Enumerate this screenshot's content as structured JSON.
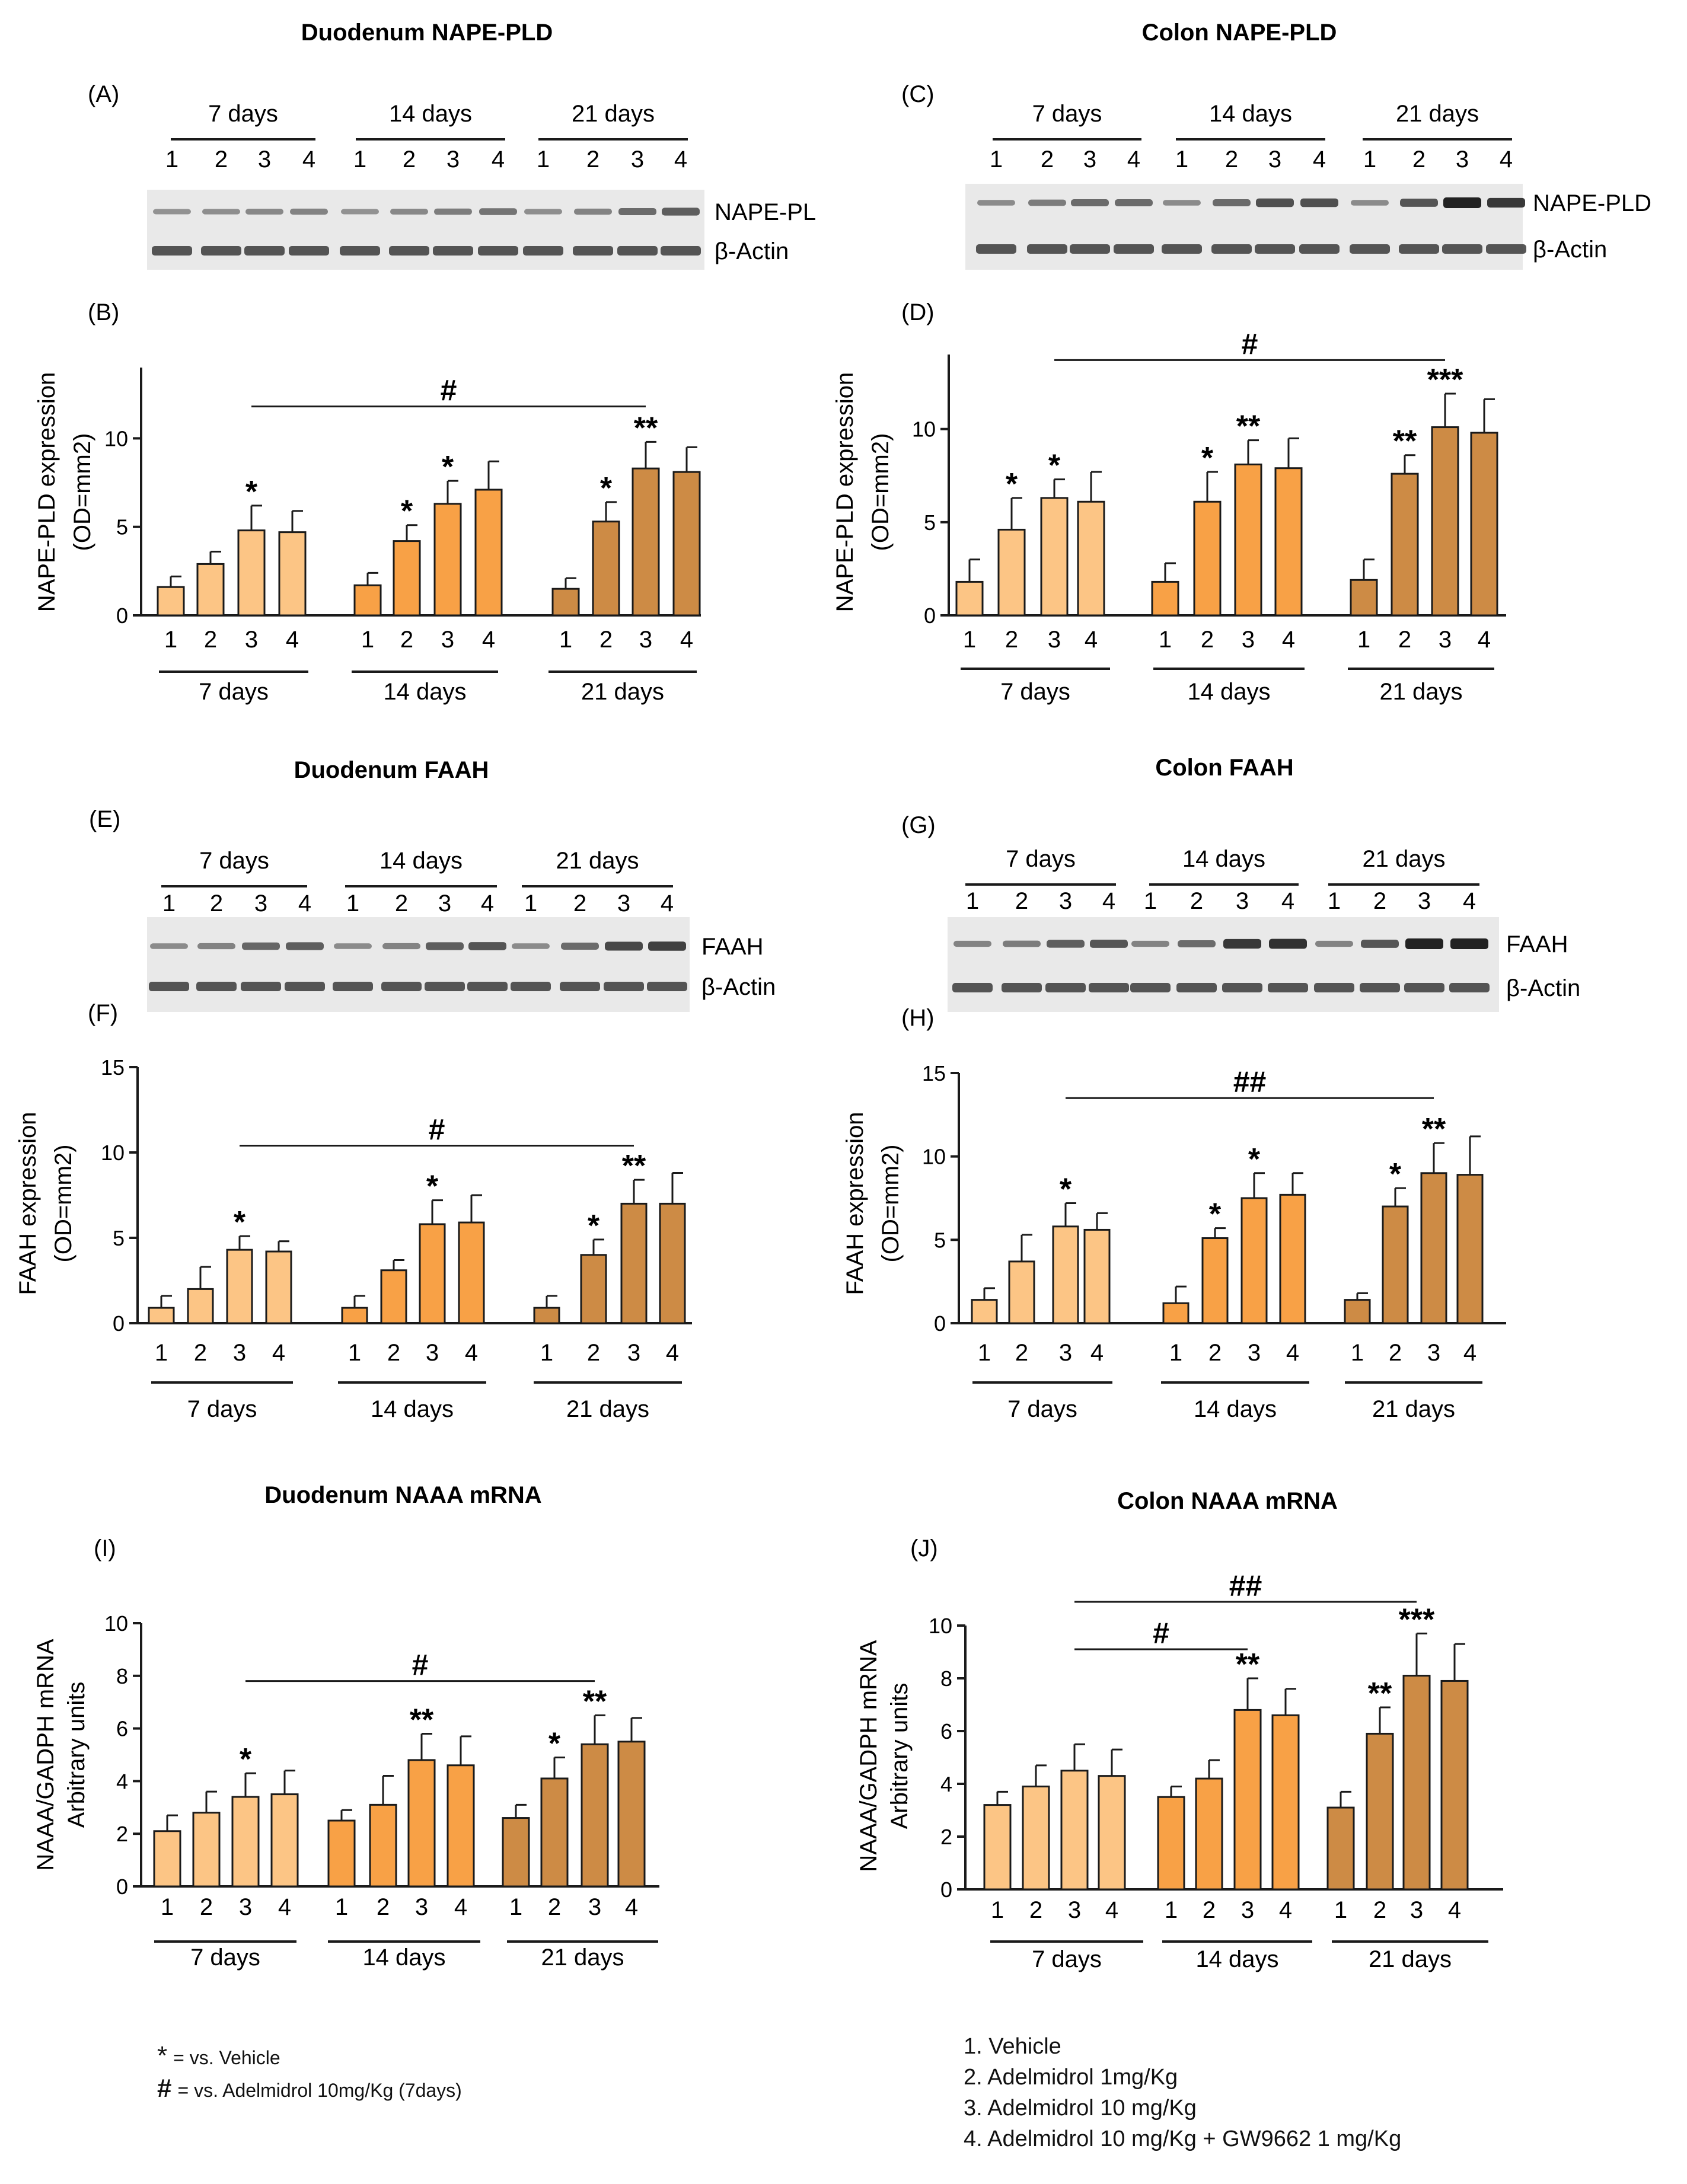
{
  "colors": {
    "d7": "#FCC585",
    "d14": "#F8A146",
    "d21": "#CD8B45",
    "stroke": "#1a1a1a",
    "blot_bg": "#e9e9e9",
    "band": "#3a3a3a"
  },
  "panels": {
    "duodenum_nape": {
      "title": "Duodenum NAPE-PLD"
    },
    "colon_nape": {
      "title": "Colon NAPE-PLD"
    },
    "duodenum_faah": {
      "title": "Duodenum FAAH"
    },
    "colon_faah": {
      "title": "Colon FAAH"
    },
    "duodenum_naaa": {
      "title": "Duodenum NAAA mRNA"
    },
    "colon_naaa": {
      "title": "Colon NAAA mRNA"
    }
  },
  "blots": [
    {
      "id": "A",
      "letter": "(A)",
      "target": "NAPE-PL",
      "ref": "β-Actin",
      "groups": [
        "7 days",
        "14 days",
        "21 days"
      ],
      "lanes": [
        "1",
        "2",
        "3",
        "4"
      ],
      "intensity": [
        0.25,
        0.28,
        0.32,
        0.35,
        0.25,
        0.32,
        0.38,
        0.45,
        0.28,
        0.35,
        0.5,
        0.6
      ]
    },
    {
      "id": "C",
      "letter": "(C)",
      "target": "NAPE-PLD",
      "ref": "β-Actin",
      "groups": [
        "7 days",
        "14 days",
        "21 days"
      ],
      "lanes": [
        "1",
        "2",
        "3",
        "4"
      ],
      "intensity": [
        0.3,
        0.4,
        0.5,
        0.5,
        0.3,
        0.5,
        0.7,
        0.7,
        0.3,
        0.65,
        1.0,
        0.85
      ]
    },
    {
      "id": "E",
      "letter": "(E)",
      "target": "FAAH",
      "ref": "β-Actin",
      "groups": [
        "7 days",
        "14 days",
        "21 days"
      ],
      "lanes": [
        "1",
        "2",
        "3",
        "4"
      ],
      "intensity": [
        0.3,
        0.35,
        0.55,
        0.6,
        0.3,
        0.35,
        0.6,
        0.65,
        0.3,
        0.5,
        0.75,
        0.8
      ]
    },
    {
      "id": "G",
      "letter": "(G)",
      "target": "FAAH",
      "ref": "β-Actin",
      "groups": [
        "7 days",
        "14 days",
        "21 days"
      ],
      "lanes": [
        "1",
        "2",
        "3",
        "4"
      ],
      "intensity": [
        0.35,
        0.4,
        0.6,
        0.65,
        0.35,
        0.5,
        0.85,
        0.9,
        0.35,
        0.65,
        1.0,
        1.0
      ]
    }
  ],
  "chart_data": [
    {
      "id": "B",
      "letter": "(B)",
      "type": "bar",
      "title": "Duodenum NAPE-PLD",
      "ylabel": "NAPE-PLD expression",
      "ylabel2": "(OD=mm2)",
      "ylim": [
        0,
        14
      ],
      "yticks": [
        0,
        5,
        10
      ],
      "groups": [
        "7 days",
        "14 days",
        "21 days"
      ],
      "categories": [
        "1",
        "2",
        "3",
        "4"
      ],
      "series": [
        {
          "name": "7 days",
          "values": [
            1.6,
            2.9,
            4.8,
            4.7
          ],
          "errors": [
            0.6,
            0.7,
            1.4,
            1.2
          ],
          "stars": [
            "",
            "",
            "*",
            ""
          ]
        },
        {
          "name": "14 days",
          "values": [
            1.7,
            4.2,
            6.3,
            7.1
          ],
          "errors": [
            0.7,
            0.9,
            1.3,
            1.6
          ],
          "stars": [
            "",
            "*",
            "*",
            ""
          ]
        },
        {
          "name": "21 days",
          "values": [
            1.5,
            5.3,
            8.3,
            8.1
          ],
          "errors": [
            0.6,
            1.1,
            1.5,
            1.4
          ],
          "stars": [
            "",
            "*",
            "**",
            ""
          ]
        }
      ],
      "bracket": {
        "label": "#",
        "from": [
          0,
          2
        ],
        "to": [
          2,
          2
        ],
        "y": 11.8
      }
    },
    {
      "id": "D",
      "letter": "(D)",
      "type": "bar",
      "title": "Colon NAPE-PLD",
      "ylabel": "NAPE-PLD expression",
      "ylabel2": "(OD=mm2)",
      "ylim": [
        0,
        14
      ],
      "yticks": [
        0,
        5,
        10
      ],
      "groups": [
        "7 days",
        "14 days",
        "21 days"
      ],
      "categories": [
        "1",
        "2",
        "3",
        "4"
      ],
      "series": [
        {
          "name": "7 days",
          "values": [
            1.8,
            4.6,
            6.3,
            6.1
          ],
          "errors": [
            1.2,
            1.7,
            1.0,
            1.6
          ],
          "stars": [
            "",
            "*",
            "*",
            ""
          ]
        },
        {
          "name": "14 days",
          "values": [
            1.8,
            6.1,
            8.1,
            7.9
          ],
          "errors": [
            1.0,
            1.6,
            1.3,
            1.6
          ],
          "stars": [
            "",
            "*",
            "**",
            ""
          ]
        },
        {
          "name": "21 days",
          "values": [
            1.9,
            7.6,
            10.1,
            9.8
          ],
          "errors": [
            1.1,
            1.0,
            1.8,
            1.8
          ],
          "stars": [
            "",
            "**",
            "***",
            ""
          ]
        }
      ],
      "bracket": {
        "label": "#",
        "from": [
          0,
          2
        ],
        "to": [
          2,
          2
        ],
        "y": 13.7
      }
    },
    {
      "id": "F",
      "letter": "(F)",
      "type": "bar",
      "title": "Duodenum FAAH",
      "ylabel": "FAAH expression",
      "ylabel2": "(OD=mm2)",
      "ylim": [
        0,
        15
      ],
      "yticks": [
        0,
        5,
        10,
        15
      ],
      "groups": [
        "7 days",
        "14 days",
        "21 days"
      ],
      "categories": [
        "1",
        "2",
        "3",
        "4"
      ],
      "series": [
        {
          "name": "7 days",
          "values": [
            0.9,
            2.0,
            4.3,
            4.2
          ],
          "errors": [
            0.7,
            1.3,
            0.8,
            0.6
          ],
          "stars": [
            "",
            "",
            "*",
            ""
          ]
        },
        {
          "name": "14 days",
          "values": [
            0.9,
            3.1,
            5.8,
            5.9
          ],
          "errors": [
            0.7,
            0.6,
            1.4,
            1.6
          ],
          "stars": [
            "",
            "",
            "*",
            ""
          ]
        },
        {
          "name": "21 days",
          "values": [
            0.9,
            4.0,
            7.0,
            7.0
          ],
          "errors": [
            0.7,
            0.9,
            1.4,
            1.8
          ],
          "stars": [
            "",
            "*",
            "**",
            ""
          ]
        }
      ],
      "bracket": {
        "label": "#",
        "from": [
          0,
          2
        ],
        "to": [
          2,
          2
        ],
        "y": 10.4
      }
    },
    {
      "id": "H",
      "letter": "(H)",
      "type": "bar",
      "title": "Colon FAAH",
      "ylabel": "FAAH expression",
      "ylabel2": "(OD=mm2)",
      "ylim": [
        0,
        15
      ],
      "yticks": [
        0,
        5,
        10,
        15
      ],
      "groups": [
        "7 days",
        "14 days",
        "21 days"
      ],
      "categories": [
        "1",
        "2",
        "3",
        "4"
      ],
      "series": [
        {
          "name": "7 days",
          "values": [
            1.4,
            3.7,
            5.8,
            5.6
          ],
          "errors": [
            0.7,
            1.6,
            1.4,
            1.0
          ],
          "stars": [
            "",
            "",
            "*",
            ""
          ]
        },
        {
          "name": "14 days",
          "values": [
            1.2,
            5.1,
            7.5,
            7.7
          ],
          "errors": [
            1.0,
            0.6,
            1.5,
            1.3
          ],
          "stars": [
            "",
            "*",
            "*",
            ""
          ]
        },
        {
          "name": "21 days",
          "values": [
            1.4,
            7.0,
            9.0,
            8.9
          ],
          "errors": [
            0.4,
            1.1,
            1.8,
            2.3
          ],
          "stars": [
            "",
            "*",
            "**",
            ""
          ]
        }
      ],
      "bracket": {
        "label": "##",
        "from": [
          0,
          2
        ],
        "to": [
          2,
          2
        ],
        "y": 13.5
      }
    },
    {
      "id": "I",
      "letter": "(I)",
      "type": "bar",
      "title": "Duodenum NAAA mRNA",
      "ylabel": "NAAA/GADPH mRNA",
      "ylabel2": "Arbitrary units",
      "ylim": [
        0,
        10
      ],
      "yticks": [
        0,
        2,
        4,
        6,
        8,
        10
      ],
      "groups": [
        "7 days",
        "14 days",
        "21 days"
      ],
      "categories": [
        "1",
        "2",
        "3",
        "4"
      ],
      "series": [
        {
          "name": "7 days",
          "values": [
            2.1,
            2.8,
            3.4,
            3.5
          ],
          "errors": [
            0.6,
            0.8,
            0.9,
            0.9
          ],
          "stars": [
            "",
            "",
            "*",
            ""
          ]
        },
        {
          "name": "14 days",
          "values": [
            2.5,
            3.1,
            4.8,
            4.6
          ],
          "errors": [
            0.4,
            1.1,
            1.0,
            1.1
          ],
          "stars": [
            "",
            "",
            "**",
            ""
          ]
        },
        {
          "name": "21 days",
          "values": [
            2.6,
            4.1,
            5.4,
            5.5
          ],
          "errors": [
            0.5,
            0.8,
            1.1,
            0.9
          ],
          "stars": [
            "",
            "*",
            "**",
            ""
          ]
        }
      ],
      "bracket": {
        "label": "#",
        "from": [
          0,
          2
        ],
        "to": [
          2,
          2
        ],
        "y": 7.8
      }
    },
    {
      "id": "J",
      "letter": "(J)",
      "type": "bar",
      "title": "Colon NAAA mRNA",
      "ylabel": "NAAA/GADPH mRNA",
      "ylabel2": "Arbitrary units",
      "ylim": [
        0,
        10
      ],
      "yticks": [
        0,
        2,
        4,
        6,
        8,
        10
      ],
      "groups": [
        "7 days",
        "14 days",
        "21 days"
      ],
      "categories": [
        "1",
        "2",
        "3",
        "4"
      ],
      "series": [
        {
          "name": "7 days",
          "values": [
            3.2,
            3.9,
            4.5,
            4.3
          ],
          "errors": [
            0.5,
            0.8,
            1.0,
            1.0
          ],
          "stars": [
            "",
            "",
            "",
            ""
          ]
        },
        {
          "name": "14 days",
          "values": [
            3.5,
            4.2,
            6.8,
            6.6
          ],
          "errors": [
            0.4,
            0.7,
            1.2,
            1.0
          ],
          "stars": [
            "",
            "",
            "**",
            ""
          ]
        },
        {
          "name": "21 days",
          "values": [
            3.1,
            5.9,
            8.1,
            7.9
          ],
          "errors": [
            0.6,
            1.0,
            1.6,
            1.4
          ],
          "stars": [
            "",
            "**",
            "***",
            ""
          ]
        }
      ],
      "bracket": {
        "label": "#",
        "from": [
          0,
          2
        ],
        "to": [
          1,
          2
        ],
        "y": 9.1
      },
      "bracket2": {
        "label": "##",
        "from": [
          0,
          2
        ],
        "to": [
          2,
          2
        ],
        "y": 10.9
      }
    }
  ],
  "legend_sig": {
    "star_symbol": "*",
    "star_text": "= vs. Vehicle",
    "hash_symbol": "#",
    "hash_text": "= vs. Adelmidrol 10mg/Kg (7days)"
  },
  "legend_groups": [
    "1. Vehicle",
    "2. Adelmidrol 1mg/Kg",
    "3. Adelmidrol 10 mg/Kg",
    "4. Adelmidrol 10 mg/Kg + GW9662 1 mg/Kg"
  ]
}
